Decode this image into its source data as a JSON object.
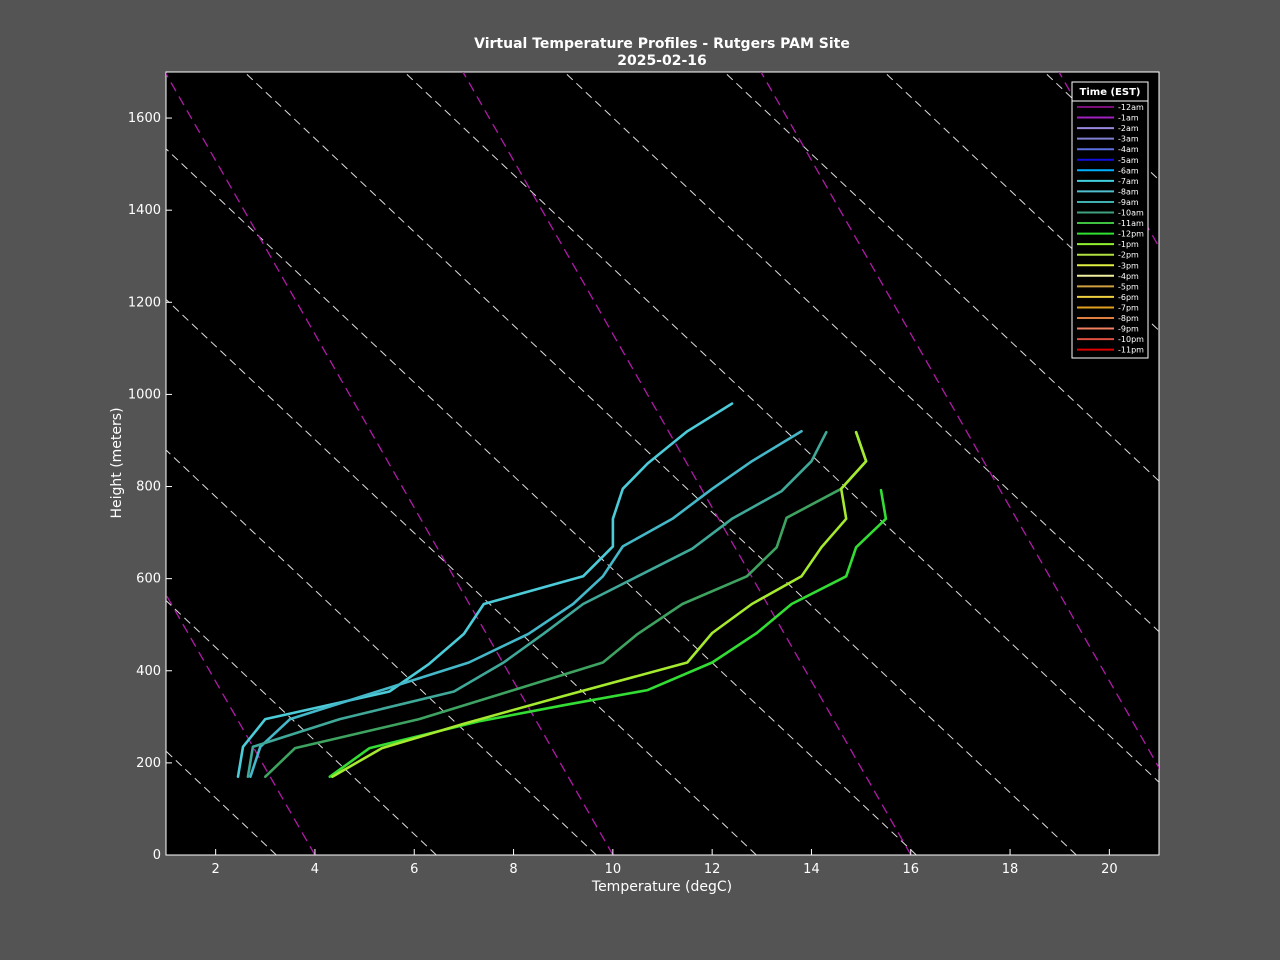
{
  "chart_data": {
    "type": "line",
    "title": "Virtual Temperature Profiles - Rutgers PAM Site",
    "subtitle": "2025-02-16",
    "xlabel": "Temperature (degC)",
    "ylabel": "Height (meters)",
    "xlim": [
      1,
      21
    ],
    "ylim": [
      0,
      1700
    ],
    "xticks": [
      2,
      4,
      6,
      8,
      10,
      12,
      14,
      16,
      18,
      20
    ],
    "yticks": [
      0,
      200,
      400,
      600,
      800,
      1000,
      1200,
      1400,
      1600
    ],
    "grid": false,
    "background_color": "#000000",
    "legend": {
      "title": "Time (EST)",
      "placement": "top-right",
      "entries": [
        {
          "label": "-12am",
          "color": "#7a0f7a"
        },
        {
          "label": "-1am",
          "color": "#a020c0"
        },
        {
          "label": "-2am",
          "color": "#9a88e0"
        },
        {
          "label": "-3am",
          "color": "#8080d0"
        },
        {
          "label": "-4am",
          "color": "#5a70e0"
        },
        {
          "label": "-5am",
          "color": "#1010e0"
        },
        {
          "label": "-6am",
          "color": "#00b0ff"
        },
        {
          "label": "-7am",
          "color": "#40d0e0"
        },
        {
          "label": "-8am",
          "color": "#50c0d0"
        },
        {
          "label": "-9am",
          "color": "#40b0b0"
        },
        {
          "label": "-10am",
          "color": "#40a080"
        },
        {
          "label": "-11am",
          "color": "#40c040"
        },
        {
          "label": "-12pm",
          "color": "#30e030"
        },
        {
          "label": "-1pm",
          "color": "#90f030"
        },
        {
          "label": "-2pm",
          "color": "#b0e040"
        },
        {
          "label": "-3pm",
          "color": "#e0f040"
        },
        {
          "label": "-4pm",
          "color": "#f0f0a0"
        },
        {
          "label": "-5pm",
          "color": "#d0a040"
        },
        {
          "label": "-6pm",
          "color": "#f0d040"
        },
        {
          "label": "-7pm",
          "color": "#e0a020"
        },
        {
          "label": "-8pm",
          "color": "#e08040"
        },
        {
          "label": "-9pm",
          "color": "#f08060"
        },
        {
          "label": "-10pm",
          "color": "#e05040"
        },
        {
          "label": "-11pm",
          "color": "#e00000"
        }
      ]
    },
    "series": [
      {
        "name": "-7am",
        "color": "#4ccbd8",
        "points": [
          [
            2.45,
            170
          ],
          [
            2.55,
            235
          ],
          [
            3.0,
            295
          ],
          [
            5.5,
            355
          ],
          [
            6.3,
            415
          ],
          [
            7.0,
            480
          ],
          [
            7.4,
            545
          ],
          [
            9.4,
            605
          ],
          [
            10.0,
            670
          ],
          [
            10.0,
            730
          ],
          [
            10.2,
            795
          ],
          [
            10.7,
            850
          ],
          [
            11.5,
            920
          ],
          [
            12.4,
            980
          ]
        ]
      },
      {
        "name": "-8am",
        "color": "#44b8c8",
        "points": [
          [
            2.7,
            170
          ],
          [
            2.9,
            235
          ],
          [
            3.5,
            295
          ],
          [
            5.4,
            360
          ],
          [
            7.1,
            418
          ],
          [
            8.3,
            480
          ],
          [
            9.2,
            545
          ],
          [
            9.8,
            605
          ],
          [
            10.2,
            670
          ],
          [
            11.2,
            730
          ],
          [
            12.0,
            795
          ],
          [
            12.8,
            855
          ],
          [
            13.8,
            920
          ]
        ]
      },
      {
        "name": "-9am",
        "color": "#3fa898",
        "points": [
          [
            2.65,
            170
          ],
          [
            2.75,
            235
          ],
          [
            4.5,
            295
          ],
          [
            6.8,
            355
          ],
          [
            7.8,
            418
          ],
          [
            8.6,
            480
          ],
          [
            9.4,
            545
          ],
          [
            10.5,
            605
          ],
          [
            11.6,
            665
          ],
          [
            12.4,
            730
          ],
          [
            13.4,
            790
          ],
          [
            14.0,
            855
          ],
          [
            14.3,
            918
          ]
        ]
      },
      {
        "name": "-10am",
        "color": "#3ea260",
        "points": [
          [
            3.0,
            170
          ],
          [
            3.6,
            232
          ],
          [
            6.1,
            295
          ],
          [
            8.0,
            358
          ],
          [
            9.8,
            418
          ],
          [
            10.5,
            480
          ],
          [
            11.4,
            545
          ],
          [
            12.7,
            605
          ],
          [
            13.3,
            668
          ],
          [
            13.5,
            732
          ],
          [
            14.6,
            795
          ],
          [
            15.1,
            855
          ],
          [
            14.9,
            918
          ]
        ]
      },
      {
        "name": "-12pm",
        "color": "#33dd33",
        "points": [
          [
            4.3,
            170
          ],
          [
            5.1,
            232
          ],
          [
            7.3,
            290
          ],
          [
            9.0,
            325
          ],
          [
            10.7,
            358
          ],
          [
            12.0,
            418
          ],
          [
            12.9,
            482
          ],
          [
            13.6,
            545
          ],
          [
            14.7,
            605
          ],
          [
            14.9,
            668
          ],
          [
            15.5,
            730
          ],
          [
            15.4,
            792
          ]
        ]
      },
      {
        "name": "-1pm",
        "color": "#a6ea30",
        "points": [
          [
            4.35,
            170
          ],
          [
            5.35,
            232
          ],
          [
            7.0,
            285
          ],
          [
            9.0,
            345
          ],
          [
            11.5,
            418
          ],
          [
            12.0,
            482
          ],
          [
            12.8,
            545
          ],
          [
            13.8,
            605
          ],
          [
            14.2,
            668
          ],
          [
            14.7,
            730
          ],
          [
            14.6,
            795
          ],
          [
            15.1,
            855
          ],
          [
            14.9,
            918
          ]
        ]
      }
    ]
  }
}
